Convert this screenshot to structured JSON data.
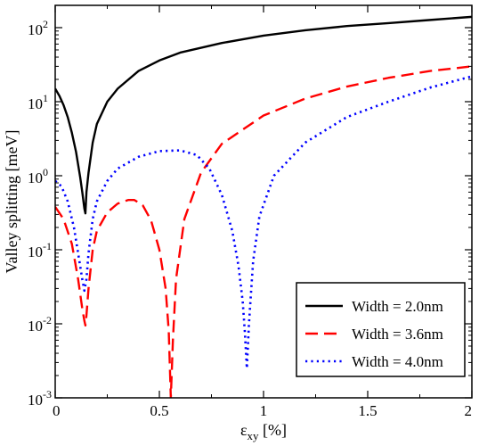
{
  "chart_data": {
    "type": "line",
    "xlabel": "ε",
    "xlabel_sub": "xy",
    "xlabel_unit": " [%]",
    "ylabel": "Valley splitting [meV]",
    "xlim": [
      0,
      2
    ],
    "ylim": [
      0.001,
      200
    ],
    "yscale": "log",
    "grid": false,
    "legend_position": "bottom-right",
    "x_ticks": [
      {
        "value": 0,
        "label": "0"
      },
      {
        "value": 0.5,
        "label": "0.5"
      },
      {
        "value": 1,
        "label": "1"
      },
      {
        "value": 1.5,
        "label": "1.5"
      },
      {
        "value": 2,
        "label": "2"
      }
    ],
    "y_ticks": [
      {
        "value": 0.001,
        "base": "10",
        "exp": "-3"
      },
      {
        "value": 0.01,
        "base": "10",
        "exp": "-2"
      },
      {
        "value": 0.1,
        "base": "10",
        "exp": "-1"
      },
      {
        "value": 1,
        "base": "10",
        "exp": "0"
      },
      {
        "value": 10,
        "base": "10",
        "exp": "1"
      },
      {
        "value": 100,
        "base": "10",
        "exp": "2"
      }
    ],
    "series": [
      {
        "name": "Width = 2.0nm",
        "color": "#000000",
        "dash": "solid",
        "x": [
          0,
          0.02,
          0.04,
          0.06,
          0.08,
          0.1,
          0.12,
          0.13,
          0.14,
          0.145,
          0.15,
          0.16,
          0.18,
          0.2,
          0.25,
          0.3,
          0.4,
          0.5,
          0.6,
          0.8,
          1.0,
          1.2,
          1.4,
          1.6,
          1.8,
          2.0
        ],
        "y": [
          15,
          12,
          9,
          6.2,
          3.8,
          2.1,
          0.95,
          0.6,
          0.36,
          0.31,
          0.6,
          1.1,
          2.8,
          5,
          10,
          15,
          26,
          36,
          46,
          62,
          78,
          92,
          105,
          115,
          127,
          140
        ]
      },
      {
        "name": "Width = 3.6nm",
        "color": "#ff0000",
        "dash": "dashed",
        "x": [
          0,
          0.04,
          0.08,
          0.11,
          0.13,
          0.14,
          0.145,
          0.15,
          0.16,
          0.18,
          0.2,
          0.25,
          0.3,
          0.35,
          0.38,
          0.42,
          0.46,
          0.5,
          0.53,
          0.545,
          0.555,
          0.565,
          0.58,
          0.62,
          0.7,
          0.8,
          1.0,
          1.2,
          1.4,
          1.6,
          1.8,
          2.0
        ],
        "y": [
          0.38,
          0.26,
          0.12,
          0.04,
          0.016,
          0.011,
          0.0095,
          0.013,
          0.03,
          0.1,
          0.18,
          0.32,
          0.42,
          0.47,
          0.47,
          0.4,
          0.25,
          0.1,
          0.03,
          0.008,
          0.001,
          0.006,
          0.04,
          0.26,
          1.1,
          2.7,
          6.5,
          11,
          16,
          21,
          26,
          30
        ]
      },
      {
        "name": "Width = 4.0nm",
        "color": "#0000ff",
        "dash": "dotted",
        "x": [
          0,
          0.03,
          0.06,
          0.09,
          0.11,
          0.13,
          0.14,
          0.15,
          0.16,
          0.18,
          0.2,
          0.25,
          0.3,
          0.4,
          0.5,
          0.6,
          0.68,
          0.74,
          0.8,
          0.85,
          0.88,
          0.9,
          0.91,
          0.92,
          0.93,
          0.95,
          0.98,
          1.05,
          1.2,
          1.4,
          1.6,
          1.8,
          2.0
        ],
        "y": [
          0.85,
          0.72,
          0.45,
          0.2,
          0.09,
          0.04,
          0.028,
          0.04,
          0.09,
          0.26,
          0.45,
          0.85,
          1.25,
          1.8,
          2.15,
          2.2,
          1.9,
          1.25,
          0.55,
          0.18,
          0.06,
          0.02,
          0.008,
          0.0025,
          0.01,
          0.07,
          0.28,
          1.0,
          2.8,
          6.2,
          10,
          15.5,
          22
        ]
      }
    ]
  }
}
